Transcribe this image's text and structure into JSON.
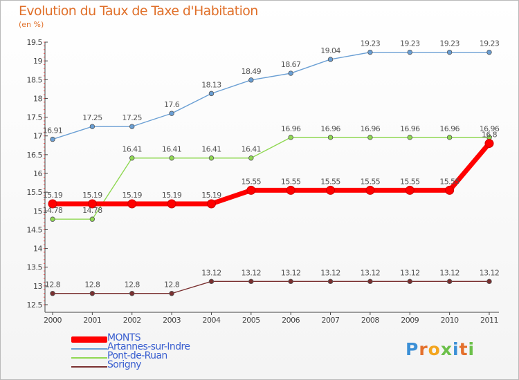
{
  "title": "Evolution du Taux de Taxe d'Habitation",
  "subtitle": "(en %)",
  "logo": {
    "text": "Proxiti"
  },
  "chart_data": {
    "type": "line",
    "title": "Evolution du Taux de Taxe d'Habitation",
    "ylabel": "(en %)",
    "x": [
      "2000",
      "2001",
      "2002",
      "2003",
      "2004",
      "2005",
      "2006",
      "2007",
      "2008",
      "2009",
      "2010",
      "2011"
    ],
    "ylim": [
      12.5,
      19.5
    ],
    "yticks": [
      "12.5",
      "13",
      "13.5",
      "14",
      "14.5",
      "15",
      "15.5",
      "16",
      "16.5",
      "17",
      "17.5",
      "18",
      "18.5",
      "19",
      "19.5"
    ],
    "grid": false,
    "legend_position": "bottom-left",
    "series": [
      {
        "name": "MONTS",
        "color": "#ff0000",
        "emphasis": true,
        "values": [
          15.19,
          15.19,
          15.19,
          15.19,
          15.19,
          15.55,
          15.55,
          15.55,
          15.55,
          15.55,
          15.55,
          16.8
        ],
        "labels": [
          "15.19",
          "15.19",
          "15.19",
          "15.19",
          "15.19",
          "15.55",
          "15.55",
          "15.55",
          "15.55",
          "15.55",
          "15.55",
          "16.8"
        ]
      },
      {
        "name": "Artannes-sur-Indre",
        "color": "#6a9fd4",
        "values": [
          16.91,
          17.25,
          17.25,
          17.6,
          18.13,
          18.49,
          18.67,
          19.04,
          19.23,
          19.23,
          19.23,
          19.23
        ],
        "labels": [
          "16.91",
          "17.25",
          "17.25",
          "17.6",
          "18.13",
          "18.49",
          "18.67",
          "19.04",
          "19.23",
          "19.23",
          "19.23",
          "19.23"
        ]
      },
      {
        "name": "Pont-de-Ruan",
        "color": "#8fd852",
        "values": [
          14.78,
          14.78,
          16.41,
          16.41,
          16.41,
          16.41,
          16.96,
          16.96,
          16.96,
          16.96,
          16.96,
          16.96
        ],
        "labels": [
          "14.78",
          "14.78",
          "16.41",
          "16.41",
          "16.41",
          "16.41",
          "16.96",
          "16.96",
          "16.96",
          "16.96",
          "16.96",
          "16.96"
        ]
      },
      {
        "name": "Sorigny",
        "color": "#7a3030",
        "values": [
          12.8,
          12.8,
          12.8,
          12.8,
          13.12,
          13.12,
          13.12,
          13.12,
          13.12,
          13.12,
          13.12,
          13.12
        ],
        "labels": [
          "12.8",
          "12.8",
          "12.8",
          "12.8",
          "13.12",
          "13.12",
          "13.12",
          "13.12",
          "13.12",
          "13.12",
          "13.12",
          "13.12"
        ]
      }
    ]
  }
}
